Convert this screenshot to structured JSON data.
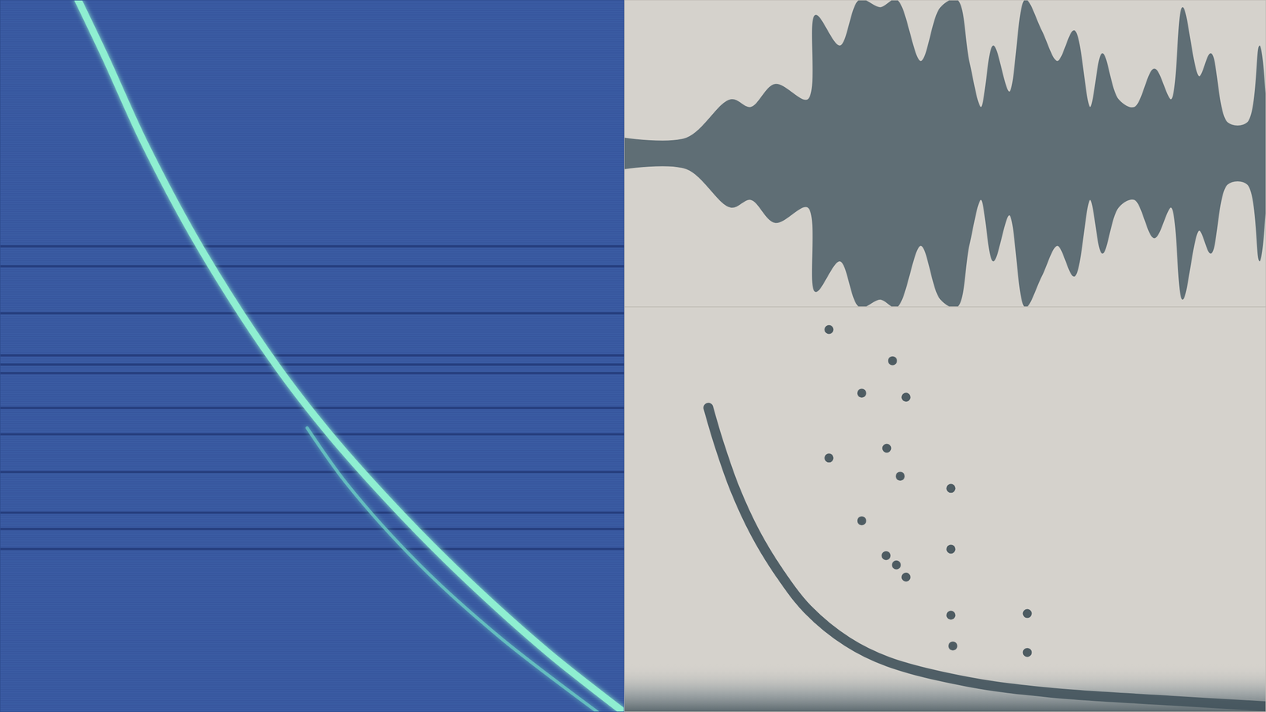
{
  "chart_data": [
    {
      "type": "line",
      "xlim": [
        0,
        100
      ],
      "ylim": [
        0,
        100
      ],
      "tick_labels": false,
      "flagged_channels": [
        65.4,
        62.6,
        56.0,
        50.1,
        48.8,
        47.6,
        42.7,
        39.0,
        33.7,
        28.0,
        25.7,
        22.9
      ],
      "series": [
        {
          "color": "#8ff0d2",
          "line_style": "solid",
          "x": [
            12.5,
            16.8,
            23.3,
            32.3,
            44.0,
            53.0,
            64.7,
            75.0,
            88.0,
            99.6
          ],
          "values": [
            100,
            92.1,
            79.6,
            64.9,
            49.0,
            38.8,
            27.4,
            18.4,
            8.2,
            0.2
          ]
        },
        {
          "color": "#6fd6c8",
          "line_style": "solid",
          "x": [
            49.2,
            55.6,
            67.3,
            80.2,
            95.7
          ],
          "values": [
            39.9,
            32.0,
            20.6,
            10.4,
            0
          ]
        }
      ]
    },
    {
      "type": "area",
      "xlim": [
        0,
        100
      ],
      "ylim": [
        -1,
        1
      ],
      "tick_labels": false,
      "color": "#5f6e75",
      "x": [
        0,
        9.7,
        16.6,
        19.7,
        23.5,
        28.6,
        29.8,
        33.6,
        36.7,
        39.9,
        42.4,
        46.2,
        49.3,
        51.8,
        53.7,
        55.6,
        57.5,
        60.0,
        62.5,
        65.0,
        67.5,
        70.1,
        72.6,
        74.5,
        77.0,
        79.5,
        82.6,
        85.2,
        87.0,
        89.6,
        91.4,
        94.0,
        97.1,
        99.0,
        100
      ],
      "values": [
        0.1,
        0.1,
        0.35,
        0.3,
        0.45,
        0.35,
        0.9,
        0.7,
        1.0,
        0.95,
        1.0,
        0.6,
        0.95,
        1.0,
        0.6,
        0.3,
        0.7,
        0.4,
        1.0,
        0.8,
        0.6,
        0.8,
        0.3,
        0.65,
        0.35,
        0.3,
        0.55,
        0.35,
        0.95,
        0.5,
        0.65,
        0.2,
        0.2,
        0.7,
        0.3
      ]
    },
    {
      "type": "scatter",
      "xlim": [
        0,
        100
      ],
      "ylim": [
        0,
        100
      ],
      "tick_labels": false,
      "series": [
        {
          "type": "line",
          "color": "#44555d",
          "line_style": "solid",
          "x": [
            13.1,
            14.7,
            17.2,
            20.4,
            24.2,
            28.6,
            34.8,
            41.1,
            53.7,
            66.3,
            85.2,
            100
          ],
          "values": [
            75.1,
            66.5,
            55.2,
            44.2,
            34.3,
            25.3,
            17.3,
            12.4,
            7.4,
            4.8,
            2.8,
            1.4
          ]
        },
        {
          "type": "scatter",
          "color": "#3f4f57",
          "marker": "circle",
          "x": [
            31.9,
            31.9,
            37.0,
            37.0,
            40.8,
            42.4,
            43.9,
            43.9,
            41.8,
            50.9,
            50.9,
            50.9,
            62.8,
            62.8,
            51.2,
            40.9,
            43.0
          ],
          "values": [
            94.4,
            62.7,
            78.7,
            47.2,
            38.6,
            36.3,
            33.3,
            77.7,
            86.7,
            55.2,
            40.2,
            23.9,
            24.3,
            14.7,
            16.3,
            65.1,
            58.2
          ]
        }
      ]
    }
  ]
}
